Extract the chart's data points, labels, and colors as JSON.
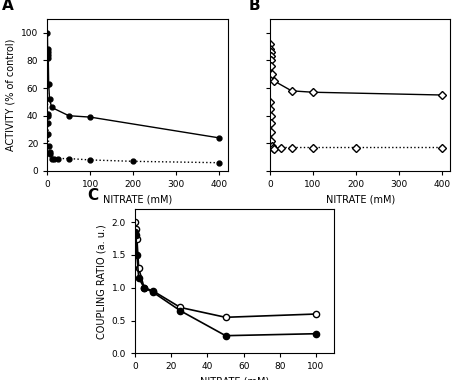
{
  "panel_A": {
    "solid_x": [
      0,
      0.5,
      1,
      1.5,
      2,
      3,
      5,
      10,
      50,
      100,
      400
    ],
    "solid_y": [
      100,
      88,
      86,
      84,
      82,
      63,
      52,
      46,
      40,
      39,
      24
    ],
    "dotted_x": [
      0,
      0.5,
      1,
      1.5,
      2,
      3,
      5,
      7,
      10,
      15,
      25,
      50,
      100,
      200,
      400
    ],
    "dotted_y": [
      62,
      41,
      40,
      35,
      27,
      18,
      14,
      12,
      9,
      9,
      9,
      9,
      8,
      7,
      6
    ],
    "xlabel": "NITRATE (mM)",
    "ylabel": "ACTIVITY (% of control)",
    "xlim": [
      0,
      420
    ],
    "ylim": [
      0,
      110
    ],
    "xticks": [
      0,
      100,
      200,
      300,
      400
    ],
    "yticks": [
      0,
      20,
      40,
      60,
      80,
      100
    ],
    "label": "A"
  },
  "panel_B": {
    "solid_x": [
      0,
      0.5,
      1,
      1.5,
      2,
      3,
      5,
      10,
      50,
      100,
      400
    ],
    "solid_y": [
      92,
      88,
      86,
      83,
      80,
      76,
      70,
      65,
      58,
      57,
      55
    ],
    "dotted_x": [
      0,
      0.5,
      1,
      1.5,
      2,
      3,
      5,
      7,
      10,
      25,
      50,
      100,
      200,
      400
    ],
    "dotted_y": [
      50,
      45,
      40,
      35,
      28,
      22,
      18,
      17,
      16,
      17,
      17,
      17,
      17,
      17
    ],
    "xlabel": "NITRATE (mM)",
    "ylabel": "",
    "xlim": [
      0,
      420
    ],
    "ylim": [
      0,
      110
    ],
    "xticks": [
      0,
      100,
      200,
      300,
      400
    ],
    "yticks": [
      0,
      20,
      40,
      60,
      80,
      100
    ],
    "label": "B"
  },
  "panel_C": {
    "open_x": [
      0,
      0.5,
      1,
      2,
      5,
      10,
      25,
      50,
      100
    ],
    "open_y": [
      2.0,
      1.9,
      1.75,
      1.3,
      1.0,
      0.95,
      0.7,
      0.55,
      0.6
    ],
    "closed_x": [
      0,
      0.5,
      1,
      2,
      5,
      10,
      25,
      50,
      100
    ],
    "closed_y": [
      1.85,
      1.8,
      1.5,
      1.15,
      1.0,
      0.93,
      0.65,
      0.27,
      0.3
    ],
    "xlabel": "NITRATE (mM)",
    "ylabel": "COUPLING RATIO (a. u.)",
    "xlim": [
      0,
      110
    ],
    "ylim": [
      0,
      2.2
    ],
    "xticks": [
      0,
      20,
      40,
      60,
      80,
      100
    ],
    "yticks": [
      0,
      0.5,
      1.0,
      1.5,
      2.0
    ],
    "label": "C"
  }
}
